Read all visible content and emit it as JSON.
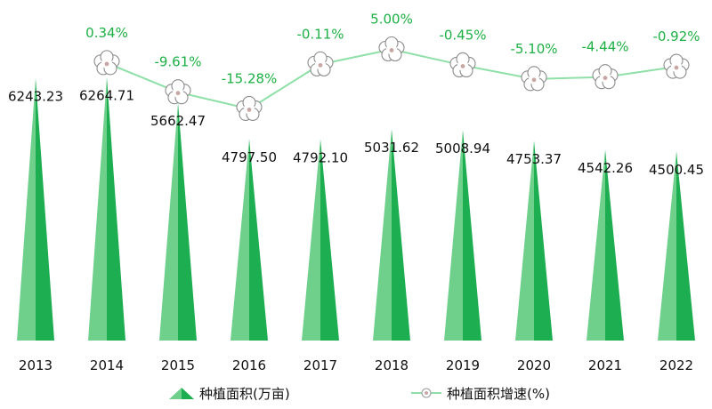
{
  "chart_data": {
    "type": "bar",
    "categories": [
      "2013",
      "2014",
      "2015",
      "2016",
      "2017",
      "2018",
      "2019",
      "2020",
      "2021",
      "2022"
    ],
    "series": [
      {
        "name": "种植面积(万亩)",
        "type": "bar",
        "values": [
          6243.23,
          6264.71,
          5662.47,
          4797.5,
          4792.1,
          5031.62,
          5008.94,
          4753.37,
          4542.26,
          4500.45
        ],
        "labels": [
          "6243.23",
          "6264.71",
          "5662.47",
          "4797.50",
          "4792.10",
          "5031.62",
          "5008.94",
          "4753.37",
          "4542.26",
          "4500.45"
        ]
      },
      {
        "name": "种植面积增速(%)",
        "type": "line",
        "values": [
          null,
          0.34,
          -9.61,
          -15.28,
          -0.11,
          5.0,
          -0.45,
          -5.1,
          -4.44,
          -0.92
        ],
        "labels": [
          "",
          "0.34%",
          "-9.61%",
          "-15.28%",
          "-0.11%",
          "5.00%",
          "-0.45%",
          "-5.10%",
          "-4.44%",
          "-0.92%"
        ]
      }
    ],
    "colors": {
      "bar_light": "#6fd08c",
      "bar_dark": "#1eae52",
      "line": "#8fe0a8",
      "line_label": "#1db045",
      "text": "#111111"
    },
    "legend_position": "bottom",
    "grid": false
  }
}
